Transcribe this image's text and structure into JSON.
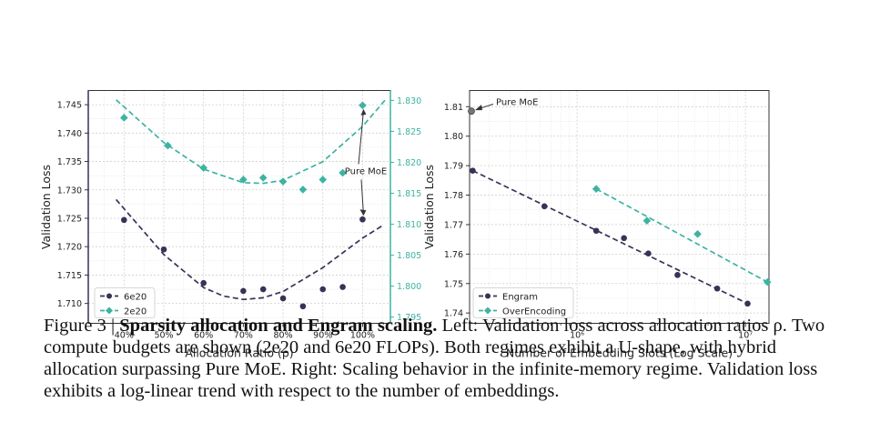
{
  "chart_data": [
    {
      "type": "scatter",
      "title": "",
      "xlabel": "Allocation Ratio (ρ)",
      "ylabel": "Validation Loss",
      "xticks": [
        40,
        50,
        60,
        70,
        80,
        90,
        100
      ],
      "xtick_labels": [
        "40%",
        "50%",
        "60%",
        "70%",
        "80%",
        "90%",
        "100%"
      ],
      "xlim": [
        31,
        107
      ],
      "ylim_left": [
        1.7065,
        1.7475
      ],
      "yticks_left": [
        1.71,
        1.715,
        1.72,
        1.725,
        1.73,
        1.735,
        1.74,
        1.745
      ],
      "ytick_labels_left": [
        "1.710",
        "1.715",
        "1.720",
        "1.725",
        "1.730",
        "1.735",
        "1.740",
        "1.745"
      ],
      "ylim_right": [
        1.794,
        1.8316
      ],
      "yticks_right": [
        1.795,
        1.8,
        1.805,
        1.81,
        1.815,
        1.82,
        1.825,
        1.83
      ],
      "ytick_labels_right": [
        "1.795",
        "1.800",
        "1.805",
        "1.810",
        "1.815",
        "1.820",
        "1.825",
        "1.830"
      ],
      "grid": true,
      "legend": "lower-left",
      "series": [
        {
          "name": "6e20",
          "axis": "left",
          "color": "#3a3156",
          "marker": "circle",
          "x": [
            40,
            50,
            60,
            70,
            75,
            80,
            85,
            90,
            95,
            100
          ],
          "y": [
            1.7247,
            1.7195,
            1.7136,
            1.7122,
            1.7125,
            1.7109,
            1.7095,
            1.7125,
            1.7129,
            1.7248
          ],
          "fit": [
            [
              38,
              1.7283
            ],
            [
              50,
              1.7186
            ],
            [
              60,
              1.7128
            ],
            [
              65,
              1.7113
            ],
            [
              70,
              1.7107
            ],
            [
              75,
              1.711
            ],
            [
              80,
              1.7121
            ],
            [
              90,
              1.7163
            ],
            [
              100,
              1.7215
            ],
            [
              105,
              1.7237
            ]
          ]
        },
        {
          "name": "2e20",
          "axis": "right",
          "color": "#3db3a2",
          "marker": "diamond",
          "x": [
            40,
            51,
            60,
            70,
            75,
            80,
            85,
            90,
            95,
            100
          ],
          "y": [
            1.8272,
            1.8227,
            1.8191,
            1.8172,
            1.8175,
            1.8169,
            1.8156,
            1.8172,
            1.8183,
            1.8292
          ],
          "fit": [
            [
              38,
              1.8301
            ],
            [
              50,
              1.8232
            ],
            [
              60,
              1.8189
            ],
            [
              70,
              1.8167
            ],
            [
              75,
              1.8166
            ],
            [
              80,
              1.8171
            ],
            [
              90,
              1.8201
            ],
            [
              100,
              1.8258
            ],
            [
              106,
              1.8303
            ]
          ]
        }
      ],
      "annotations": [
        {
          "text": "Pure MoE",
          "points_to": [
            {
              "x": 100,
              "y": 1.7248
            },
            {
              "x": 100,
              "y": 1.8292
            }
          ]
        }
      ]
    },
    {
      "type": "scatter",
      "title": "",
      "xlabel": "Number of Embedding Slots (Log Scale)",
      "ylabel": "Validation Loss",
      "xscale": "log",
      "xlim": [
        230000,
        13800000
      ],
      "xticks": [
        1000000,
        10000000
      ],
      "xtick_labels": [
        "10⁶",
        "10⁷"
      ],
      "ylim": [
        1.7365,
        1.8155
      ],
      "yticks": [
        1.74,
        1.75,
        1.76,
        1.77,
        1.78,
        1.79,
        1.8,
        1.81
      ],
      "ytick_labels": [
        "1.74",
        "1.75",
        "1.76",
        "1.77",
        "1.78",
        "1.79",
        "1.80",
        "1.81"
      ],
      "grid": true,
      "legend": "lower-left",
      "reference_point": {
        "name": "Pure MoE",
        "x": 230000,
        "y": 1.8085,
        "color": "#777777"
      },
      "series": [
        {
          "name": "Engram",
          "color": "#3a3156",
          "marker": "circle",
          "x": [
            240000,
            640000,
            1300000,
            1900000,
            2650000,
            3950000,
            6800000,
            10300000
          ],
          "y": [
            1.7883,
            1.7762,
            1.7679,
            1.7654,
            1.7602,
            1.7529,
            1.7483,
            1.7432
          ],
          "fit": [
            [
              240000,
              1.7883
            ],
            [
              10300000,
              1.7432
            ]
          ]
        },
        {
          "name": "OverEncoding",
          "color": "#3db3a2",
          "marker": "diamond",
          "x": [
            1300000,
            2600000,
            5200000,
            13500000
          ],
          "y": [
            1.7821,
            1.7713,
            1.7668,
            1.7505
          ],
          "fit": [
            [
              1300000,
              1.7821
            ],
            [
              13500000,
              1.7505
            ]
          ]
        }
      ],
      "annotations": [
        {
          "text": "Pure MoE",
          "points_to": [
            {
              "x": 230000,
              "y": 1.8085
            }
          ]
        }
      ]
    }
  ],
  "caption": {
    "label": "Figure 3 | ",
    "bold": "Sparsity allocation and Engram scaling.",
    "text": " Left: Validation loss across allocation ratios ρ. Two compute budgets are shown (2e20 and 6e20 FLOPs). Both regimes exhibit a U-shape, with hybrid allocation surpassing Pure MoE. Right: Scaling behavior in the infinite-memory regime. Validation loss exhibits a log-linear trend with respect to the number of embeddings."
  }
}
